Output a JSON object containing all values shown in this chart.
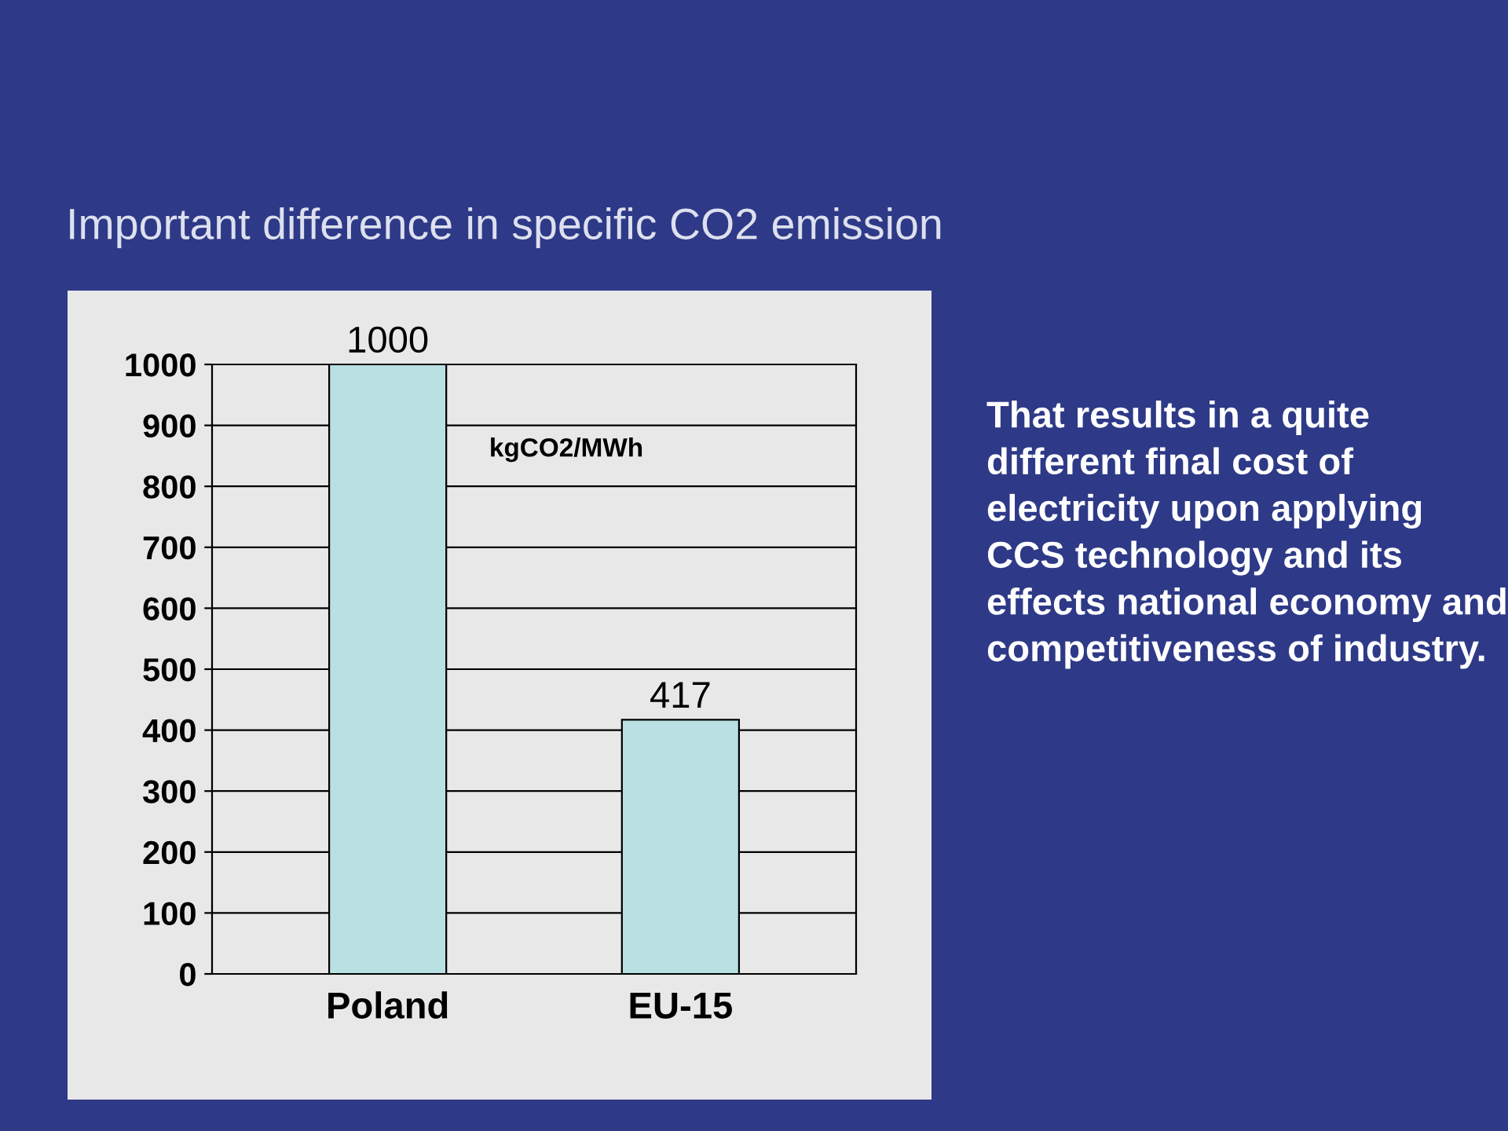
{
  "chart_data": {
    "type": "bar",
    "title": "Important difference in specific CO2 emission",
    "categories": [
      "Poland",
      "EU-15"
    ],
    "values": [
      1000,
      417
    ],
    "color": "#b9e0e3",
    "ylim": [
      0,
      1000
    ],
    "yticks": [
      0,
      100,
      200,
      300,
      400,
      500,
      600,
      700,
      800,
      900,
      1000
    ],
    "grid": "y",
    "data_labels": true,
    "annotations": [
      "kgCO2/MWh",
      "That results in a quite different final cost of electricity upon applying CCS technology and its effects national economy and competitiveness of industry."
    ]
  }
}
